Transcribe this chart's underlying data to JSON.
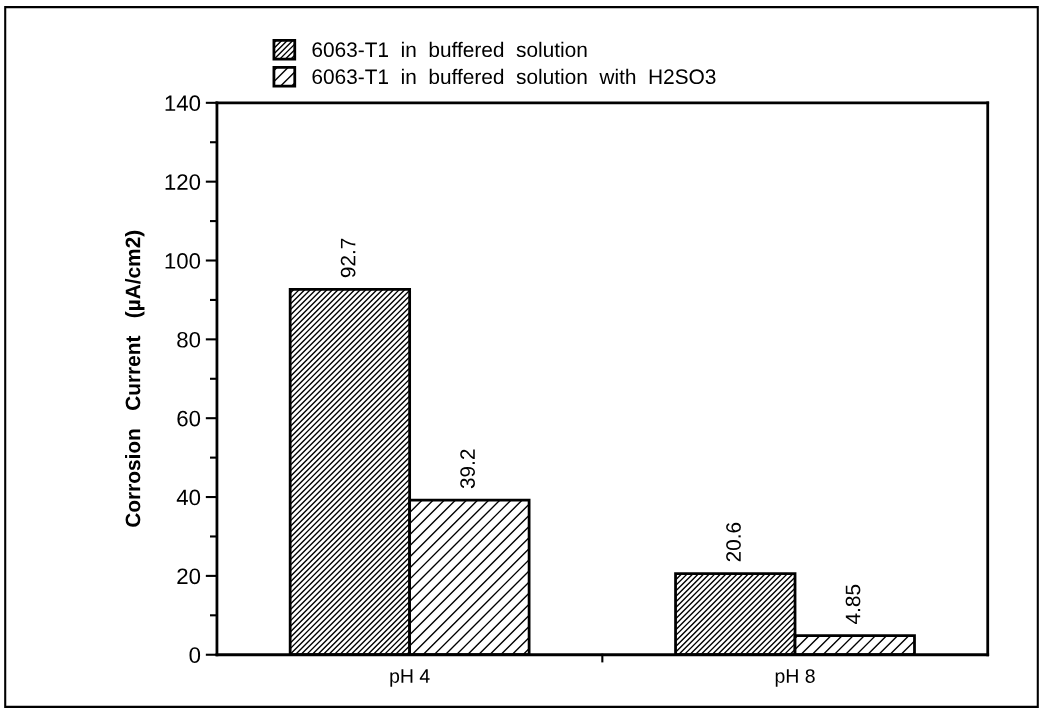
{
  "chart_data": {
    "type": "bar",
    "categories": [
      "pH 4",
      "pH 8"
    ],
    "ylabel": "Corrosion   Current   (µA/cm2)",
    "series": [
      {
        "name": "6063-T1  in  buffered  solution",
        "color": "#000000",
        "values": [
          92.7,
          20.6
        ],
        "value_labels": [
          "92.7",
          "20.6"
        ]
      },
      {
        "name": "6063-T1  in  buffered  solution  with  H2SO3",
        "color": "#000000",
        "values": [
          39.2,
          4.85
        ],
        "value_labels": [
          "39.2",
          "4.85"
        ]
      }
    ],
    "ylim": [
      0,
      140
    ],
    "yticks": [
      0,
      20,
      40,
      60,
      80,
      100,
      120,
      140
    ],
    "grid": false,
    "legend": "top"
  }
}
